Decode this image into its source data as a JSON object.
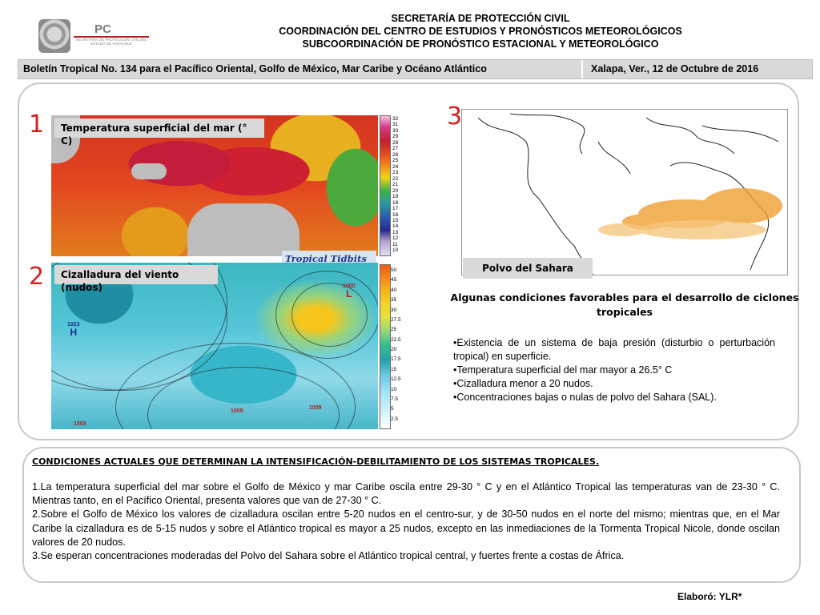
{
  "header": {
    "logo": {
      "pc": "PC",
      "sub": "SECRETARÍA DE PROTECCIÓN CIVIL DEL ESTADO DE VERACRUZ"
    },
    "lines": [
      "SECRETARÍA  DE  PROTECCIÓN  CIVIL",
      "COORDINACIÓN DEL CENTRO  DE  ESTUDIOS Y PRONÓSTICOS METEOROLÓGICOS",
      "SUBCOORDINACIÓN DE PRONÓSTICO ESTACIONAL Y METEOROLÓGICO"
    ]
  },
  "bar": {
    "bulletin": "Boletín  Tropical No. 134 para el Pacífico Oriental, Golfo de México, Mar Caribe y Océano Atlántico",
    "place_date": "Xalapa, Ver., 12 de Octubre de 2016"
  },
  "panels": {
    "n1": "1",
    "n2": "2",
    "n3": "3",
    "sst_label": "Temperatura superficial del mar (° C)",
    "wind_label": "Cizalladura del viento (nudos)",
    "sahara_label": "Polvo del Sahara",
    "tidbits": "Tropical Tidbits",
    "sst_scale": [
      "32",
      "31",
      "30",
      "29",
      "28",
      "27",
      "26",
      "25",
      "24",
      "23",
      "22",
      "21",
      "20",
      "19",
      "18",
      "17",
      "16",
      "15",
      "14",
      "13",
      "12",
      "11",
      "10"
    ],
    "wind_scale": [
      "50",
      "45",
      "40",
      "35",
      "30",
      "27.5",
      "25",
      "22.5",
      "20",
      "17.5",
      "15",
      "12.5",
      "10",
      "7.5",
      "5",
      "2.5"
    ],
    "pressures": {
      "h1023": "1023",
      "h_letter": "H",
      "l1000": "1000",
      "l_letter": "L",
      "l1009a": "1009",
      "l1009b": "1009",
      "l1009c": "1009"
    }
  },
  "conditions": {
    "title": "Algunas condiciones favorables para el desarrollo de ciclones tropicales",
    "items": [
      "•Existencia de un sistema de baja presión (disturbio o perturbación tropical)  en superficie.",
      "•Temperatura superficial del mar mayor a 26.5° C",
      "•Cizalladura menor a 20 nudos.",
      "•Concentraciones bajas o nulas de polvo del Sahara (SAL)."
    ]
  },
  "current": {
    "title": "CONDICIONES ACTUALES QUE DETERMINAN LA INTENSIFICACIÓN-DEBILITAMIENTO DE LOS SISTEMAS TROPICALES.",
    "items": [
      "1.La temperatura superficial del mar sobre el Golfo de México y mar Caribe oscila entre 29-30 ° C y en el Atlántico Tropical las temperaturas van de 23-30 ° C. Mientras tanto, en el Pacífico Oriental, presenta valores que van de 27-30 ° C.",
      "2.Sobre el Golfo de México los valores de cizalladura oscilan entre 5-20 nudos en el centro-sur, y de 30-50 nudos en el norte del mismo; mientras que, en el Mar Caribe la cizalladura es de 5-15 nudos y sobre el Atlántico tropical es mayor a 25 nudos, excepto en las inmediaciones de la Tormenta Tropical Nicole, donde oscilan valores de  20 nudos.",
      "3.Se esperan concentraciones moderadas del Polvo del Sahara sobre el Atlántico tropical central,  y fuertes frente a costas de África."
    ]
  },
  "footer": {
    "elaboro": "Elaboró: YLR*"
  }
}
